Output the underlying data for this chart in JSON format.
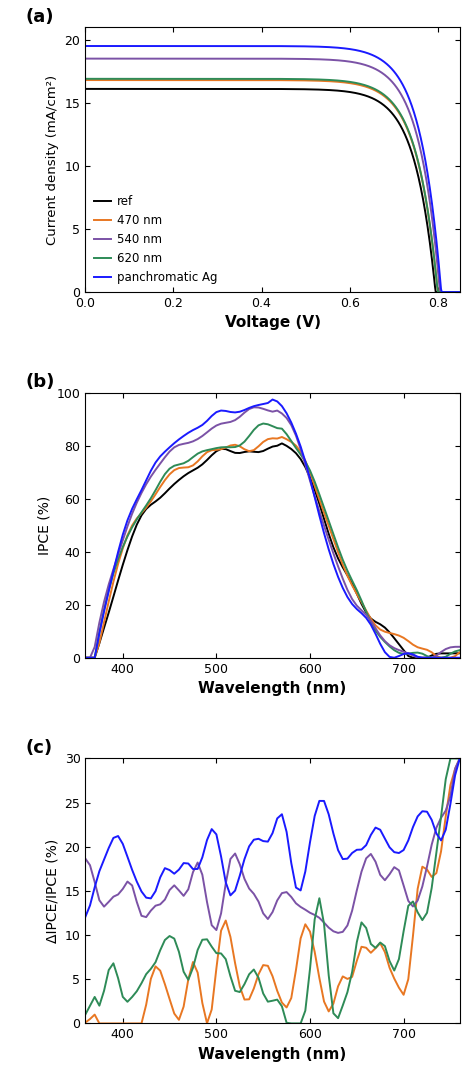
{
  "colors": {
    "ref": "#000000",
    "470nm": "#E87722",
    "540nm": "#7B52A6",
    "620nm": "#2E8B57",
    "panchromatic": "#1A1AFF"
  },
  "labels": {
    "ref": "ref",
    "470nm": "470 nm",
    "540nm": "540 nm",
    "620nm": "620 nm",
    "panchromatic": "panchromatic Ag"
  },
  "panel_a": {
    "xlabel": "Voltage (V)",
    "ylabel": "Current density (mA/cm²)",
    "xlim": [
      0.0,
      0.85
    ],
    "ylim": [
      0,
      21
    ],
    "yticks": [
      0,
      5,
      10,
      15,
      20
    ],
    "xticks": [
      0.0,
      0.2,
      0.4,
      0.6,
      0.8
    ]
  },
  "panel_b": {
    "xlabel": "Wavelength (nm)",
    "ylabel": "IPCE (%)",
    "xlim": [
      360,
      760
    ],
    "ylim": [
      0,
      100
    ],
    "yticks": [
      0,
      20,
      40,
      60,
      80,
      100
    ],
    "xticks": [
      400,
      500,
      600,
      700
    ]
  },
  "panel_c": {
    "xlabel": "Wavelength (nm)",
    "ylabel": "ΔIPCE/IPCE (%)",
    "xlim": [
      360,
      760
    ],
    "ylim": [
      0,
      30
    ],
    "yticks": [
      0,
      5,
      10,
      15,
      20,
      25,
      30
    ],
    "xticks": [
      400,
      500,
      600,
      700
    ]
  }
}
